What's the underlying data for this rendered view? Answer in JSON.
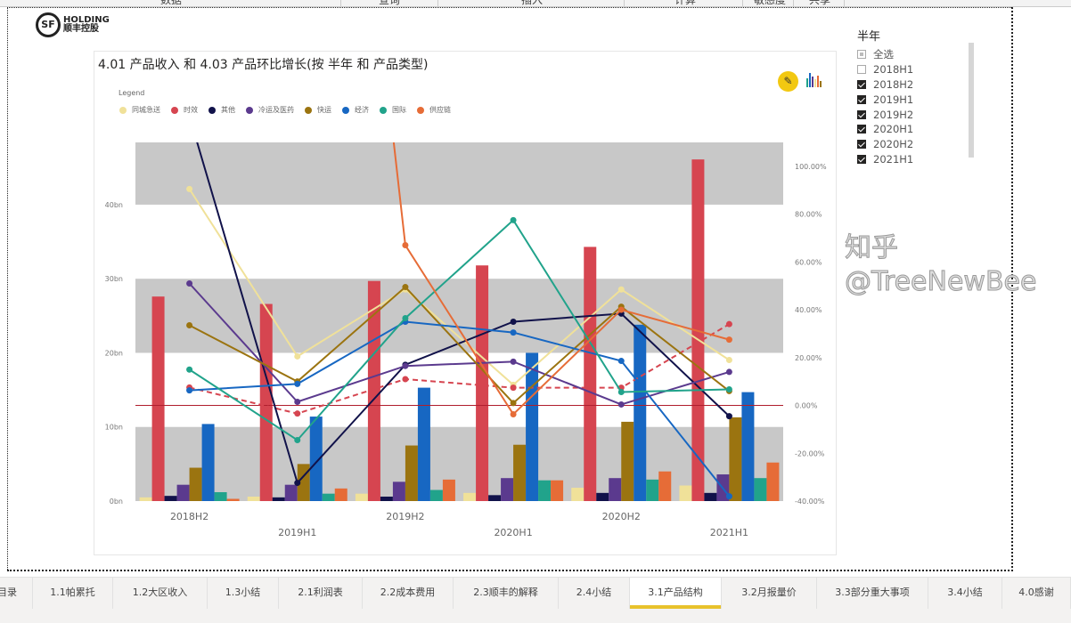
{
  "menu": [
    "数据",
    "查询",
    "插入",
    "计算",
    "敏感度",
    "共享"
  ],
  "logo": {
    "brand": "HOLDING",
    "cn": "顺丰控股",
    "mark": "SF"
  },
  "visual": {
    "title": "4.01 产品收入 和 4.03 产品环比增长(按 半年 和 产品类型)",
    "legend_title": "Legend",
    "edit_icon": "pencil-icon",
    "bars_icon": "bar-chart-icon"
  },
  "chart_data": {
    "type": "bar+line",
    "categories": [
      "2018H2",
      "2019H1",
      "2019H2",
      "2020H1",
      "2020H2",
      "2021H1"
    ],
    "left_axis": {
      "ticks": [
        "0bn",
        "10bn",
        "20bn",
        "30bn",
        "40bn"
      ],
      "range": [
        0,
        48.4
      ]
    },
    "right_axis": {
      "ticks": [
        "-40.00%",
        "-20.00%",
        "0.00%",
        "20.00%",
        "40.00%",
        "60.00%",
        "80.00%",
        "100.00%"
      ],
      "range": [
        -40,
        110
      ]
    },
    "legend_position": "top-left",
    "series": [
      {
        "name": "同城急送",
        "color": "#F0E199",
        "bars": [
          0.5,
          0.6,
          1.0,
          1.1,
          1.8,
          2.1
        ],
        "growth": [
          90.5,
          20.5,
          48.5,
          8.6,
          48.5,
          19
        ]
      },
      {
        "name": "时效",
        "color": "#D64550",
        "bars": [
          27.6,
          26.6,
          29.7,
          31.8,
          34.3,
          46.1
        ],
        "growth": [
          7.5,
          -3.4,
          11,
          7.4,
          7.4,
          34
        ],
        "dashed": true
      },
      {
        "name": "其他",
        "color": "#11124A",
        "bars": [
          0.7,
          0.5,
          0.6,
          0.8,
          1.1,
          1.1
        ],
        "growth": [
          121,
          -32.4,
          17,
          35,
          38.4,
          -4.5
        ]
      },
      {
        "name": "冷运及医药",
        "color": "#5B3A8E",
        "bars": [
          2.2,
          2.2,
          2.6,
          3.1,
          3.1,
          3.6
        ],
        "growth": [
          51,
          1.5,
          16.5,
          18.3,
          0.4,
          14
        ]
      },
      {
        "name": "快运",
        "color": "#9B7410",
        "bars": [
          4.5,
          5.0,
          7.5,
          7.6,
          10.7,
          11.3
        ],
        "growth": [
          33.5,
          10,
          49.5,
          1,
          41.3,
          6
        ]
      },
      {
        "name": "经济",
        "color": "#1767C2",
        "bars": [
          10.4,
          11.4,
          15.3,
          20.0,
          23.8,
          14.7
        ],
        "growth": [
          6.3,
          9,
          35,
          30.5,
          18.6,
          -38
        ]
      },
      {
        "name": "国际",
        "color": "#21A38B",
        "bars": [
          1.2,
          1.0,
          1.5,
          2.8,
          2.9,
          3.1
        ],
        "growth": [
          15,
          -14.5,
          36.5,
          77.5,
          5.6,
          6.7
        ]
      },
      {
        "name": "供应链",
        "color": "#E66C37",
        "bars": [
          0.3,
          1.7,
          2.9,
          2.8,
          4.0,
          5.2
        ],
        "growth": [
          null,
          467,
          67,
          -3.7,
          40,
          27.5
        ]
      }
    ],
    "band_color": "#C8C8C8",
    "zero_line_color": "#B01E2D"
  },
  "slicer": {
    "title": "半年",
    "items": [
      {
        "label": "全选",
        "state": "partial"
      },
      {
        "label": "2018H1",
        "state": "off"
      },
      {
        "label": "2018H2",
        "state": "on"
      },
      {
        "label": "2019H1",
        "state": "on"
      },
      {
        "label": "2019H2",
        "state": "on"
      },
      {
        "label": "2020H1",
        "state": "on"
      },
      {
        "label": "2020H2",
        "state": "on"
      },
      {
        "label": "2021H1",
        "state": "on"
      },
      {
        "label": "2021H2",
        "state": "off"
      }
    ]
  },
  "tabs": [
    "目录",
    "1.1帕累托",
    "1.2大区收入",
    "1.3小结",
    "2.1利润表",
    "2.2成本费用",
    "2.3顺丰的解释",
    "2.4小结",
    "3.1产品结构",
    "3.2月报量价",
    "3.3部分重大事项",
    "3.4小结",
    "4.0感谢"
  ],
  "active_tab": "3.1产品结构",
  "watermark": "知乎 @TreeNewBee"
}
